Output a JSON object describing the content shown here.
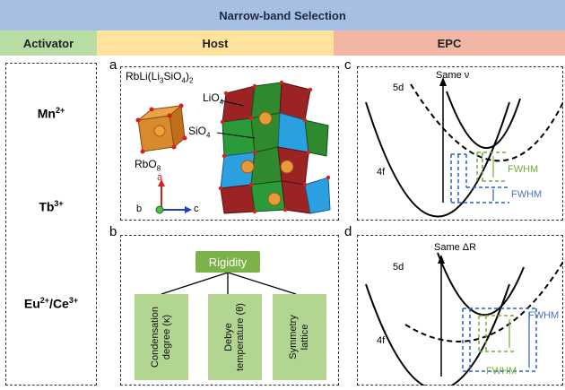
{
  "banner": {
    "title": "Narrow-band Selection"
  },
  "columns": {
    "activator": "Activator",
    "host": "Host",
    "epc": "EPC"
  },
  "activators": [
    {
      "base": "Mn",
      "sup": "2+"
    },
    {
      "base": "Tb",
      "sup": "3+"
    },
    {
      "base": "Eu",
      "sup": "2+",
      "sep": "/",
      "base2": "Ce",
      "sup2": "3+"
    }
  ],
  "panel_a": {
    "letter": "a",
    "formula": {
      "p1": "RbLi(Li",
      "sub1": "3",
      "p2": "SiO",
      "sub2": "4",
      "p3": ")",
      "sub3": "2"
    },
    "label_lio4": {
      "base": "LiO",
      "sub": "4"
    },
    "label_sio4": {
      "base": "SiO",
      "sub": "4"
    },
    "label_rbo8": {
      "base": "RbO",
      "sub": "8"
    },
    "axis_a": "a",
    "axis_b": "b",
    "axis_c": "c"
  },
  "panel_b": {
    "letter": "b",
    "root": "Rigidity",
    "children": [
      {
        "line1": "Condensation",
        "line2": "degree (κ)"
      },
      {
        "line1": "Debye",
        "line2": "temperature (θ)"
      },
      {
        "line1": "Symmetry",
        "line2": "lattice"
      }
    ]
  },
  "panel_c": {
    "letter": "c",
    "title": "Same ν",
    "upper": "5d",
    "lower": "4f",
    "fwhm_green": "FWHM",
    "fwhm_blue": "FWHM"
  },
  "panel_d": {
    "letter": "d",
    "title": "Same ΔR",
    "upper": "5d",
    "lower": "4f",
    "fwhm_blue": "FWHM",
    "fwhm_green": "FWHM"
  },
  "colors": {
    "banner": "#a8bfe4",
    "activator": "#b7dca4",
    "host": "#ffe39c",
    "epc": "#f3b5a4",
    "rigidity": "#7db24a",
    "subbox": "#b3d592",
    "fwhm_green": "#74ad3c",
    "fwhm_blue": "#4a72c8"
  }
}
